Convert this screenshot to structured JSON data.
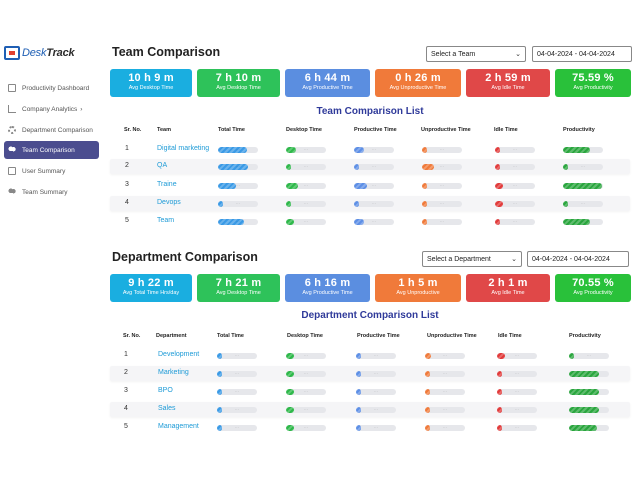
{
  "app": {
    "logo_prefix": "Desk",
    "logo_suffix": "Track"
  },
  "sidebar": {
    "items": [
      {
        "label": "Productivity Dashboard",
        "icon": "dashboard-icon"
      },
      {
        "label": "Company Analytics",
        "icon": "chart-icon",
        "chevron": "›"
      },
      {
        "label": "Department Comparison",
        "icon": "gear-icon"
      },
      {
        "label": "Team Comparison",
        "icon": "users-icon",
        "active": true
      },
      {
        "label": "User Summary",
        "icon": "document-icon"
      },
      {
        "label": "Team Summary",
        "icon": "users-icon"
      }
    ]
  },
  "team": {
    "title": "Team Comparison",
    "select": "Select a Team",
    "date": "04-04-2024 - 04-04-2024",
    "cards": [
      {
        "value": "10 h 9 m",
        "label": "Avg Desktop Time",
        "color": "#1aaee0"
      },
      {
        "value": "7 h 10 m",
        "label": "Avg Desktop Time",
        "color": "#2ec25a"
      },
      {
        "value": "6 h 44 m",
        "label": "Avg Productive Time",
        "color": "#5b8ee0"
      },
      {
        "value": "0 h 26 m",
        "label": "Avg Unproductive Time",
        "color": "#f07a3a"
      },
      {
        "value": "2 h 59 m",
        "label": "Avg Idle Time",
        "color": "#e04848"
      },
      {
        "value": "75.59 %",
        "label": "Avg Productivity",
        "color": "#29c13a"
      }
    ],
    "list_title": "Team Comparison List",
    "headers": [
      "Sr. No.",
      "Team",
      "Total Time",
      "Desktop Time",
      "Productive Time",
      "Unproductive Time",
      "Idle Time",
      "Productivity"
    ],
    "rows": [
      {
        "no": "1",
        "name": "Digital marketing",
        "total": 0.72,
        "desktop": 0.25,
        "productive": 0.25,
        "unproductive": 0.02,
        "idle": 0.1,
        "productivity": 0.68
      },
      {
        "no": "2",
        "name": "QA",
        "total": 0.75,
        "desktop": 0.05,
        "productive": 0.05,
        "unproductive": 0.3,
        "idle": 0.12,
        "productivity": 0.0
      },
      {
        "no": "3",
        "name": "Traine",
        "total": 0.45,
        "desktop": 0.3,
        "productive": 0.32,
        "unproductive": 0.04,
        "idle": 0.2,
        "productivity": 0.98
      },
      {
        "no": "4",
        "name": "Devops",
        "total": 0.05,
        "desktop": 0.05,
        "productive": 0.05,
        "unproductive": 0.02,
        "idle": 0.2,
        "productivity": 0.05
      },
      {
        "no": "5",
        "name": "Team",
        "total": 0.65,
        "desktop": 0.2,
        "productive": 0.25,
        "unproductive": 0.02,
        "idle": 0.1,
        "productivity": 0.68
      }
    ]
  },
  "department": {
    "title": "Department Comparison",
    "select": "Select a Department",
    "date": "04-04-2024 - 04-04-2024",
    "cards": [
      {
        "value": "9 h 22 m",
        "label": "Avg Total Time Hrs/day",
        "color": "#1aaee0"
      },
      {
        "value": "7 h 21 m",
        "label": "Avg Desktop Time",
        "color": "#2ec25a"
      },
      {
        "value": "6 h 16 m",
        "label": "Avg Productive Time",
        "color": "#5b8ee0"
      },
      {
        "value": "1 h 5 m",
        "label": "Avg Unproductive",
        "color": "#f07a3a"
      },
      {
        "value": "2 h 1 m",
        "label": "Avg Idle Time",
        "color": "#e04848"
      },
      {
        "value": "70.55 %",
        "label": "Avg Productivity",
        "color": "#29c13a"
      }
    ],
    "list_title": "Department Comparison List",
    "headers": [
      "Sr. No.",
      "Department",
      "Total Time",
      "Desktop Time",
      "Productive Time",
      "Unproductive Time",
      "Idle Time",
      "Productivity"
    ],
    "rows": [
      {
        "no": "1",
        "name": "Development",
        "total": 0.05,
        "desktop": 0.2,
        "productive": 0.05,
        "unproductive": 0.15,
        "idle": 0.2,
        "productivity": 0.0
      },
      {
        "no": "2",
        "name": "Marketing",
        "total": 0.05,
        "desktop": 0.2,
        "productive": 0.1,
        "unproductive": 0.02,
        "idle": 0.05,
        "productivity": 0.75
      },
      {
        "no": "3",
        "name": "BPO",
        "total": 0.05,
        "desktop": 0.2,
        "productive": 0.05,
        "unproductive": 0.05,
        "idle": 0.08,
        "productivity": 0.75
      },
      {
        "no": "4",
        "name": "Sales",
        "total": 0.05,
        "desktop": 0.2,
        "productive": 0.05,
        "unproductive": 0.02,
        "idle": 0.08,
        "productivity": 0.75
      },
      {
        "no": "5",
        "name": "Management",
        "total": 0.05,
        "desktop": 0.2,
        "productive": 0.05,
        "unproductive": 0.02,
        "idle": 0.05,
        "productivity": 0.7
      }
    ]
  }
}
